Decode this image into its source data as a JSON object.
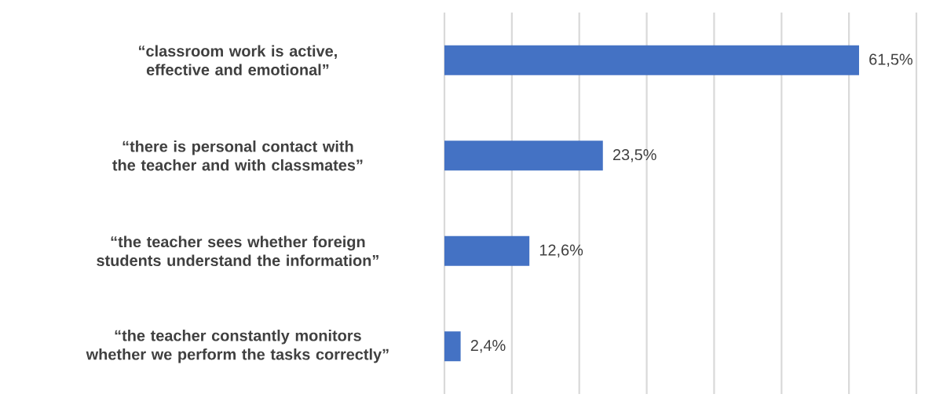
{
  "chart_data": {
    "type": "bar",
    "orientation": "horizontal",
    "categories": [
      "“classroom work is active, effective and emotional”",
      "“there is personal contact with the teacher and with classmates”",
      "“the teacher sees whether foreign students understand the information”",
      "“the teacher constantly monitors whether we perform the tasks correctly”"
    ],
    "values": [
      61.5,
      23.5,
      12.6,
      2.4
    ],
    "value_labels": [
      "61,5%",
      "23,5%",
      "12,6%",
      "2,4%"
    ],
    "color": "#4472c4",
    "xlim": [
      0,
      70
    ],
    "xticks": [
      {
        "value": 0,
        "label": null
      },
      {
        "value": 10,
        "label": null
      },
      {
        "value": 20,
        "label": null
      },
      {
        "value": 30,
        "label": null
      },
      {
        "value": 40,
        "label": null
      },
      {
        "value": 50,
        "label": null
      },
      {
        "value": 60,
        "label": null
      },
      {
        "value": 70,
        "label": null
      }
    ],
    "tick_labels": "y",
    "grid": "x"
  }
}
